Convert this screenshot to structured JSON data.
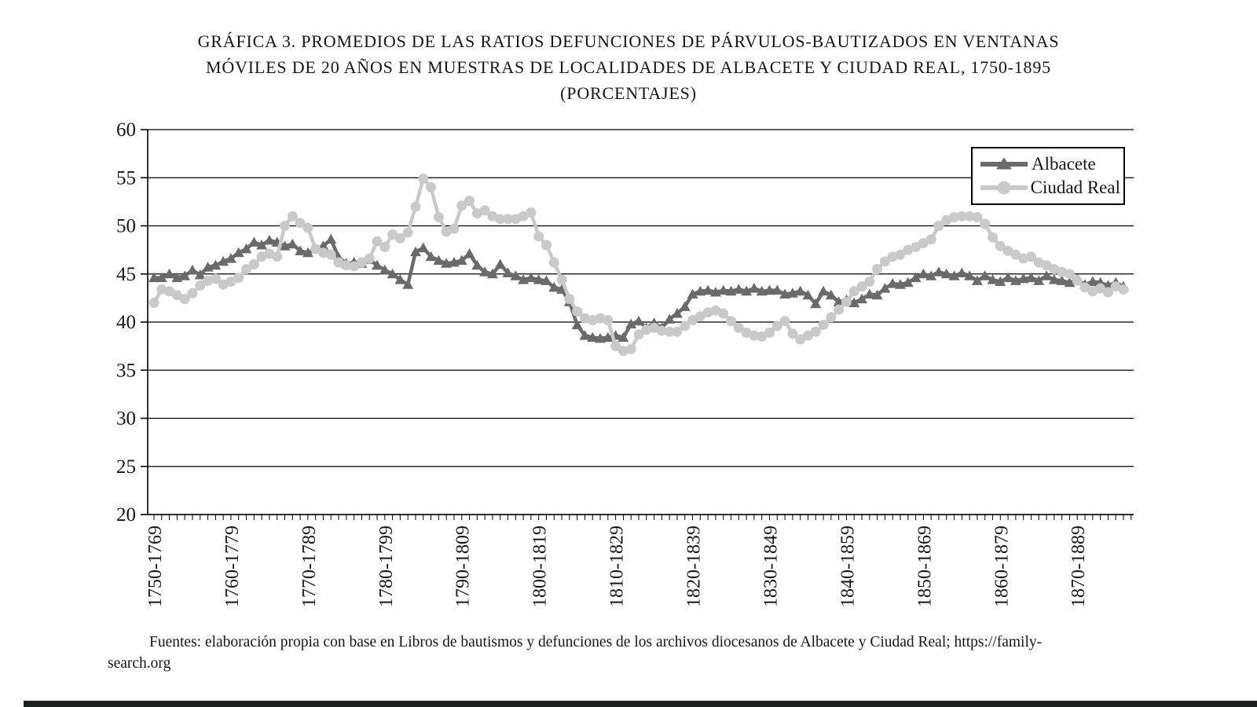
{
  "page": {
    "title_lines": [
      "GRÁFICA 3. PROMEDIOS DE LAS RATIOS DEFUNCIONES DE PÁRVULOS-BAUTIZADOS EN VENTANAS",
      "MÓVILES DE 20 AÑOS EN MUESTRAS DE LOCALIDADES DE ALBACETE Y CIUDAD REAL, 1750-1895",
      "(PORCENTAJES)"
    ],
    "source_lines": [
      "Fuentes: elaboración propia con base en Libros de bautismos y defunciones de los archivos diocesanos de Albacete y Ciudad Real; https://family-",
      "search.org"
    ]
  },
  "colors": {
    "axis": "#000000",
    "grid": "#000000",
    "background": "#ffffff",
    "albacete": "#6a6a6a",
    "ciudad_real": "#c9c9c9",
    "bottom_bar": "#1b221f"
  },
  "chart_data": {
    "type": "line",
    "title": "GRÁFICA 3. PROMEDIOS DE LAS RATIOS DEFUNCIONES DE PÁRVULOS-BAUTIZADOS EN VENTANAS MÓVILES DE 20 AÑOS EN MUESTRAS DE LOCALIDADES DE ALBACETE Y CIUDAD REAL, 1750-1895 (PORCENTAJES)",
    "x_window_span_years": 20,
    "x_first_window": "1750-1769",
    "x_tick_labels": [
      "1750-1769",
      "1760-1779",
      "1770-1789",
      "1780-1799",
      "1790-1809",
      "1800-1819",
      "1810-1829",
      "1820-1839",
      "1830-1849",
      "1840-1859",
      "1850-1869",
      "1860-1879",
      "1870-1889"
    ],
    "ylim": [
      20,
      60
    ],
    "yticks": [
      20,
      25,
      30,
      35,
      40,
      45,
      50,
      55,
      60
    ],
    "grid": "horizontal",
    "legend_position": "top-right-inside",
    "series": [
      {
        "name": "Albacete",
        "marker": "triangle",
        "color": "#6a6a6a",
        "values": [
          44.6,
          44.6,
          45.0,
          44.6,
          44.8,
          45.4,
          44.9,
          45.7,
          45.9,
          46.3,
          46.6,
          47.2,
          47.6,
          48.3,
          48.0,
          48.5,
          48.3,
          47.9,
          48.1,
          47.4,
          47.2,
          47.6,
          47.9,
          48.6,
          46.7,
          46.1,
          46.2,
          46.1,
          46.5,
          45.9,
          45.4,
          45.0,
          44.4,
          43.9,
          47.3,
          47.7,
          46.8,
          46.4,
          46.1,
          46.2,
          46.4,
          47.1,
          45.9,
          45.2,
          45.0,
          46.0,
          45.1,
          44.8,
          44.4,
          44.6,
          44.4,
          44.3,
          43.6,
          43.4,
          42.1,
          39.7,
          38.6,
          38.4,
          38.3,
          38.4,
          38.6,
          38.4,
          39.8,
          40.1,
          39.4,
          39.9,
          39.4,
          40.3,
          40.9,
          41.6,
          42.9,
          43.2,
          43.3,
          43.1,
          43.3,
          43.2,
          43.4,
          43.2,
          43.5,
          43.2,
          43.3,
          43.3,
          42.9,
          43.0,
          43.2,
          42.8,
          41.9,
          43.2,
          42.8,
          42.1,
          42.3,
          42.0,
          42.4,
          42.9,
          42.8,
          43.5,
          44.0,
          43.9,
          44.1,
          44.6,
          45.0,
          44.8,
          45.2,
          45.0,
          44.8,
          45.1,
          44.8,
          44.3,
          44.8,
          44.4,
          44.2,
          44.6,
          44.3,
          44.5,
          44.6,
          44.3,
          44.8,
          44.4,
          44.3,
          44.1,
          44.4,
          43.9,
          44.2,
          44.1,
          43.8,
          44.1,
          43.7
        ]
      },
      {
        "name": "Ciudad Real",
        "marker": "circle",
        "color": "#c9c9c9",
        "values": [
          42.0,
          43.4,
          43.2,
          42.8,
          42.4,
          43.0,
          43.8,
          44.3,
          44.5,
          43.9,
          44.2,
          44.6,
          45.5,
          46.0,
          46.8,
          47.1,
          46.8,
          50.0,
          51.0,
          50.3,
          49.8,
          47.6,
          47.2,
          47.0,
          46.2,
          45.9,
          45.8,
          46.2,
          46.6,
          48.4,
          47.8,
          49.1,
          48.7,
          49.3,
          52.0,
          54.9,
          54.0,
          50.9,
          49.4,
          49.7,
          52.1,
          52.6,
          51.3,
          51.6,
          51.0,
          50.7,
          50.7,
          50.7,
          51.0,
          51.4,
          48.9,
          48.0,
          46.2,
          44.4,
          42.4,
          41.1,
          40.4,
          40.2,
          40.4,
          40.2,
          37.5,
          37.0,
          37.2,
          38.7,
          39.2,
          39.4,
          39.1,
          39.0,
          39.0,
          39.6,
          40.2,
          40.6,
          41.0,
          41.2,
          40.9,
          40.1,
          39.4,
          38.9,
          38.6,
          38.5,
          38.9,
          39.6,
          40.1,
          38.8,
          38.2,
          38.6,
          39.0,
          39.7,
          40.5,
          41.3,
          42.1,
          43.2,
          43.7,
          44.2,
          45.5,
          46.3,
          46.8,
          47.0,
          47.5,
          47.8,
          48.2,
          48.6,
          50.0,
          50.6,
          50.9,
          51.0,
          51.0,
          50.9,
          50.2,
          48.8,
          47.9,
          47.4,
          47.0,
          46.6,
          46.8,
          46.2,
          45.9,
          45.5,
          45.2,
          45.0,
          44.3,
          43.6,
          43.2,
          43.5,
          43.1,
          43.7,
          43.4
        ]
      }
    ]
  }
}
